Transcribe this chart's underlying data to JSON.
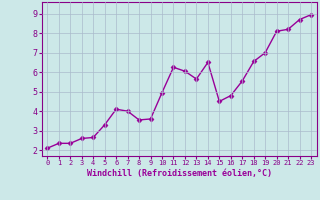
{
  "x": [
    0,
    1,
    2,
    3,
    4,
    5,
    6,
    7,
    8,
    9,
    10,
    11,
    12,
    13,
    14,
    15,
    16,
    17,
    18,
    19,
    20,
    21,
    22,
    23
  ],
  "y": [
    2.1,
    2.35,
    2.35,
    2.6,
    2.65,
    3.3,
    4.1,
    4.0,
    3.55,
    3.6,
    4.95,
    6.25,
    6.05,
    5.65,
    6.5,
    4.5,
    4.8,
    5.55,
    6.55,
    7.0,
    8.1,
    8.2,
    8.7,
    8.95
  ],
  "line_color": "#990099",
  "marker": "D",
  "marker_size": 2.5,
  "line_width": 1.0,
  "xlabel": "Windchill (Refroidissement éolien,°C)",
  "xlabel_color": "#990099",
  "xlabel_fontsize": 6,
  "xtick_fontsize": 5,
  "ytick_fontsize": 6,
  "xlim": [
    -0.5,
    23.5
  ],
  "ylim": [
    1.7,
    9.6
  ],
  "yticks": [
    2,
    3,
    4,
    5,
    6,
    7,
    8,
    9
  ],
  "xticks": [
    0,
    1,
    2,
    3,
    4,
    5,
    6,
    7,
    8,
    9,
    10,
    11,
    12,
    13,
    14,
    15,
    16,
    17,
    18,
    19,
    20,
    21,
    22,
    23
  ],
  "background_color": "#cce8e8",
  "grid_color": "#aabbcc",
  "tick_color": "#880088",
  "spine_color": "#880088",
  "xlabel_bold": true
}
